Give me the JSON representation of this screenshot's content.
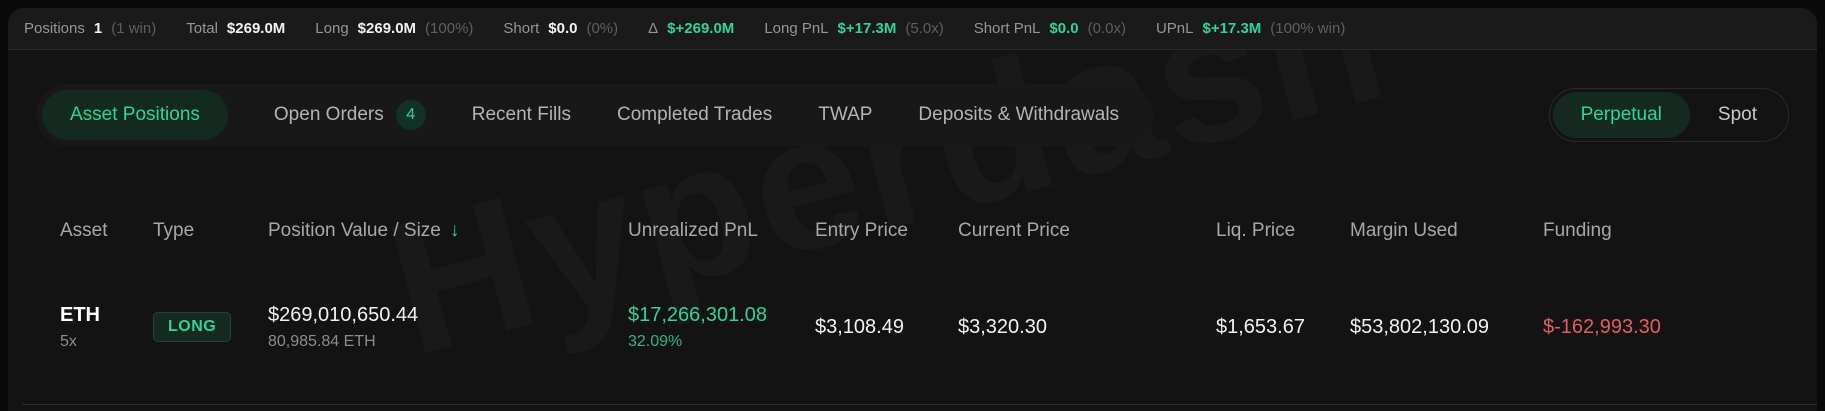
{
  "colors": {
    "accent_green": "#2FD49A",
    "negative_red": "#E25E5E",
    "long_badge_bg": "#14291F",
    "topbar_bg": "#1A1A1A",
    "panel_bg": "#131313"
  },
  "stats_bar": {
    "items": [
      {
        "label": "Positions",
        "value": "1",
        "note": "(1 win)"
      },
      {
        "label": "Total",
        "value": "$269.0M",
        "note": ""
      },
      {
        "label": "Long",
        "value": "$269.0M",
        "note": "(100%)"
      },
      {
        "label": "Short",
        "value": "$0.0",
        "note": "(0%)"
      },
      {
        "label": "Δ",
        "value": "$+269.0M",
        "note": ""
      },
      {
        "label": "Long PnL",
        "value": "$+17.3M",
        "note": "(5.0x)"
      },
      {
        "label": "Short PnL",
        "value": "$0.0",
        "note": "(0.0x)"
      },
      {
        "label": "UPnL",
        "value": "$+17.3M",
        "note": "(100% win)"
      }
    ]
  },
  "tabs": {
    "items": [
      {
        "label": "Asset Positions",
        "active": true
      },
      {
        "label": "Open Orders",
        "badge": "4",
        "active": false
      },
      {
        "label": "Recent Fills",
        "active": false
      },
      {
        "label": "Completed Trades",
        "active": false
      },
      {
        "label": "TWAP",
        "active": false
      },
      {
        "label": "Deposits & Withdrawals",
        "active": false
      }
    ],
    "market_toggle": [
      {
        "label": "Perpetual",
        "active": true
      },
      {
        "label": "Spot",
        "active": false
      }
    ]
  },
  "table": {
    "columns": [
      "Asset",
      "Type",
      "Position Value / Size",
      "Unrealized PnL",
      "Entry Price",
      "Current Price",
      "Liq. Price",
      "Margin Used",
      "Funding"
    ],
    "sort": {
      "column": "Position Value / Size",
      "direction": "desc",
      "icon": "↓"
    },
    "rows": [
      {
        "asset": "ETH",
        "leverage": "5x",
        "type": "LONG",
        "position_value": "$269,010,650.44",
        "position_size": "80,985.84 ETH",
        "unrealized_pnl": "$17,266,301.08",
        "unrealized_pnl_pct": "32.09%",
        "entry_price": "$3,108.49",
        "current_price": "$3,320.30",
        "liq_price": "$1,653.67",
        "margin_used": "$53,802,130.09",
        "funding": "$-162,993.30"
      }
    ]
  },
  "watermark": "Hyperdash"
}
